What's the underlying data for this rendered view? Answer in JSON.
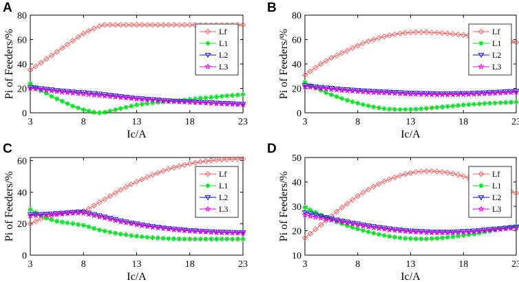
{
  "chart_data": [
    {
      "type": "line",
      "panel_label": "A",
      "xlabel": "Ic/A",
      "ylabel": "Pi of Feeders/%",
      "xlim": [
        3,
        23
      ],
      "ylim": [
        0,
        80
      ],
      "xticks": [
        3,
        8,
        13,
        18,
        23
      ],
      "yticks": [
        0,
        20,
        40,
        60,
        80
      ],
      "grid": false,
      "legend_position": "top-right",
      "x": [
        3,
        3.5,
        4,
        4.5,
        5,
        5.5,
        6,
        6.5,
        7,
        7.5,
        8,
        8.5,
        9,
        9.5,
        10,
        10.5,
        11,
        11.5,
        12,
        12.5,
        13,
        13.5,
        14,
        14.5,
        15,
        15.5,
        16,
        16.5,
        17,
        17.5,
        18,
        18.5,
        19,
        19.5,
        20,
        20.5,
        21,
        21.5,
        22,
        22.5,
        23
      ],
      "series": [
        {
          "name": "Lf",
          "color": "#ff5a5a",
          "marker": "diamond",
          "values": [
            35,
            38,
            41,
            44,
            47,
            50,
            53,
            56,
            59,
            62,
            65,
            67,
            69,
            71,
            72,
            72,
            72,
            72,
            72,
            72,
            72,
            72,
            72,
            72,
            72,
            72,
            72,
            72,
            72,
            72,
            72,
            72,
            72,
            72,
            72,
            72,
            72,
            72,
            72,
            72,
            72
          ]
        },
        {
          "name": "L1",
          "color": "#00e020",
          "marker": "star",
          "values": [
            24,
            21,
            18,
            16,
            13.5,
            11.5,
            9.5,
            7.5,
            5.5,
            4,
            2.5,
            1.5,
            0.5,
            0,
            0.5,
            1.5,
            2.5,
            3.5,
            4.5,
            5.5,
            6.5,
            7,
            7.5,
            8,
            8.5,
            9,
            9.3,
            9.6,
            10,
            10.5,
            11,
            11.5,
            12,
            12.3,
            12.6,
            13,
            13.5,
            14,
            14.3,
            14.6,
            15
          ]
        },
        {
          "name": "L2",
          "color": "#0000ff",
          "marker": "triangle-down",
          "values": [
            21,
            20.5,
            20,
            19.5,
            19,
            18.5,
            18,
            17.7,
            17.3,
            17,
            16.7,
            16.3,
            16,
            15.5,
            15,
            14.5,
            14,
            13.5,
            13,
            12.5,
            12,
            11.7,
            11.3,
            11,
            10.7,
            10.3,
            10,
            9.8,
            9.6,
            9.4,
            9.2,
            9,
            8.8,
            8.6,
            8.4,
            8.2,
            8,
            7.8,
            7.6,
            7.4,
            7.2
          ]
        },
        {
          "name": "L3",
          "color": "#e000e0",
          "marker": "star-open",
          "values": [
            20,
            19.5,
            19,
            18.5,
            18,
            17.5,
            17,
            16.6,
            16.2,
            15.8,
            15.4,
            15,
            14.6,
            14.2,
            13.8,
            13.4,
            13,
            12.6,
            12.2,
            11.8,
            11.4,
            11,
            10.7,
            10.4,
            10.1,
            9.8,
            9.5,
            9.2,
            9,
            8.8,
            8.6,
            8.4,
            8.2,
            8,
            7.8,
            7.6,
            7.4,
            7.2,
            7,
            6.8,
            6.6
          ]
        }
      ]
    },
    {
      "type": "line",
      "panel_label": "B",
      "xlabel": "Ic/A",
      "ylabel": "Pi of Feeders/%",
      "xlim": [
        3,
        23
      ],
      "ylim": [
        0,
        80
      ],
      "xticks": [
        3,
        8,
        13,
        18,
        23
      ],
      "yticks": [
        0,
        20,
        40,
        60,
        80
      ],
      "grid": false,
      "legend_position": "top-right",
      "x": [
        3,
        3.5,
        4,
        4.5,
        5,
        5.5,
        6,
        6.5,
        7,
        7.5,
        8,
        8.5,
        9,
        9.5,
        10,
        10.5,
        11,
        11.5,
        12,
        12.5,
        13,
        13.5,
        14,
        14.5,
        15,
        15.5,
        16,
        16.5,
        17,
        17.5,
        18,
        18.5,
        19,
        19.5,
        20,
        20.5,
        21,
        21.5,
        22,
        22.5,
        23
      ],
      "series": [
        {
          "name": "Lf",
          "color": "#ff5a5a",
          "marker": "diamond",
          "values": [
            31,
            34,
            37,
            40,
            42.5,
            45,
            47,
            49,
            51,
            53,
            55,
            57,
            58.5,
            60,
            61.5,
            62.5,
            63.5,
            64.3,
            65,
            65.5,
            65.8,
            66,
            66,
            66,
            65.8,
            65.6,
            65.3,
            65,
            64.6,
            64.2,
            63.8,
            63.3,
            62.8,
            62.3,
            61.7,
            61.1,
            60.5,
            59.8,
            59.1,
            58.4,
            57.7
          ]
        },
        {
          "name": "L1",
          "color": "#00e020",
          "marker": "star",
          "values": [
            25,
            22.5,
            20.5,
            18.5,
            16.5,
            14.8,
            13.2,
            11.7,
            10.3,
            9,
            7.8,
            6.7,
            5.7,
            4.8,
            4,
            3.4,
            3,
            2.8,
            2.7,
            2.7,
            2.8,
            3,
            3.3,
            3.6,
            4,
            4.4,
            4.8,
            5.2,
            5.6,
            6,
            6.4,
            6.7,
            7,
            7.3,
            7.6,
            7.8,
            8,
            8.2,
            8.4,
            8.6,
            8.8
          ]
        },
        {
          "name": "L2",
          "color": "#0000ff",
          "marker": "triangle-down",
          "values": [
            22.5,
            22,
            21.5,
            21,
            20.6,
            20.2,
            19.8,
            19.4,
            19.1,
            18.8,
            18.5,
            18.2,
            17.9,
            17.7,
            17.5,
            17.3,
            17.1,
            16.9,
            16.7,
            16.5,
            16.3,
            16.2,
            16.1,
            16,
            15.9,
            15.8,
            15.8,
            15.8,
            15.8,
            15.9,
            16,
            16.1,
            16.2,
            16.4,
            16.6,
            16.8,
            17,
            17.2,
            17.4,
            17.6,
            17.8
          ]
        },
        {
          "name": "L3",
          "color": "#e000e0",
          "marker": "star-open",
          "values": [
            21.5,
            21,
            20.5,
            20,
            19.6,
            19.2,
            18.8,
            18.4,
            18.1,
            17.8,
            17.5,
            17.2,
            16.9,
            16.7,
            16.5,
            16.3,
            16.1,
            15.9,
            15.7,
            15.5,
            15.3,
            15.2,
            15.1,
            15,
            14.9,
            14.8,
            14.8,
            14.8,
            14.8,
            14.9,
            15,
            15.1,
            15.2,
            15.4,
            15.6,
            15.8,
            16,
            16.2,
            16.4,
            16.6,
            16.8
          ]
        }
      ]
    },
    {
      "type": "line",
      "panel_label": "C",
      "xlabel": "Ic/A",
      "ylabel": "Pi of Feeders/%",
      "xlim": [
        3,
        23
      ],
      "ylim": [
        0,
        62
      ],
      "xticks": [
        3,
        8,
        13,
        18,
        23
      ],
      "yticks": [
        0,
        20,
        40,
        60
      ],
      "grid": false,
      "legend_position": "top-right",
      "x": [
        3,
        3.5,
        4,
        4.5,
        5,
        5.5,
        6,
        6.5,
        7,
        7.5,
        8,
        8.5,
        9,
        9.5,
        10,
        10.5,
        11,
        11.5,
        12,
        12.5,
        13,
        13.5,
        14,
        14.5,
        15,
        15.5,
        16,
        16.5,
        17,
        17.5,
        18,
        18.5,
        19,
        19.5,
        20,
        20.5,
        21,
        21.5,
        22,
        22.5,
        23
      ],
      "series": [
        {
          "name": "Lf",
          "color": "#ff5a5a",
          "marker": "diamond",
          "values": [
            20,
            21.5,
            23,
            24,
            25,
            25.8,
            26.5,
            27,
            27.3,
            27.6,
            28,
            29.5,
            31.5,
            33.5,
            35.5,
            37.5,
            39.5,
            41.5,
            43.3,
            45,
            46.6,
            48.1,
            49.6,
            51,
            52.3,
            53.5,
            54.6,
            55.6,
            56.5,
            57.3,
            58,
            58.6,
            59.2,
            59.7,
            60.1,
            60.4,
            60.6,
            60.8,
            60.9,
            61,
            61
          ]
        },
        {
          "name": "L1",
          "color": "#00e020",
          "marker": "star",
          "values": [
            29,
            27,
            25,
            23.5,
            22.5,
            21.5,
            21,
            20.5,
            20,
            19.5,
            19,
            18,
            17,
            16,
            15.3,
            14.6,
            14,
            13.4,
            12.9,
            12.4,
            12,
            11.7,
            11.4,
            11.1,
            10.9,
            10.7,
            10.5,
            10.4,
            10.3,
            10.2,
            10.2,
            10.2,
            10.2,
            10.2,
            10.2,
            10.2,
            10.2,
            10.2,
            10.2,
            10.2,
            10.2
          ]
        },
        {
          "name": "L2",
          "color": "#0000ff",
          "marker": "triangle-down",
          "values": [
            26,
            26,
            26,
            26.2,
            26.4,
            26.6,
            26.8,
            27,
            27.3,
            27.6,
            27.5,
            26.8,
            26,
            25.2,
            24.4,
            23.6,
            22.8,
            22,
            21.3,
            20.6,
            20,
            19.4,
            18.9,
            18.4,
            17.9,
            17.5,
            17.1,
            16.7,
            16.4,
            16.1,
            15.8,
            15.6,
            15.4,
            15.2,
            15,
            14.9,
            14.8,
            14.7,
            14.6,
            14.5,
            14.5
          ]
        },
        {
          "name": "L3",
          "color": "#e000e0",
          "marker": "star-open",
          "values": [
            25,
            25.2,
            25.4,
            25.6,
            25.8,
            26,
            26.2,
            26.4,
            26.6,
            26.8,
            26.7,
            26,
            25.2,
            24.4,
            23.6,
            22.8,
            22,
            21.3,
            20.6,
            20,
            19.4,
            18.8,
            18.3,
            17.8,
            17.4,
            17,
            16.6,
            16.2,
            15.9,
            15.6,
            15.3,
            15.1,
            14.9,
            14.7,
            14.5,
            14.4,
            14.3,
            14.2,
            14.1,
            14,
            14
          ]
        }
      ]
    },
    {
      "type": "line",
      "panel_label": "D",
      "xlabel": "Ic/A",
      "ylabel": "Pi of Feeders/%",
      "xlim": [
        3,
        23
      ],
      "ylim": [
        10,
        50
      ],
      "xticks": [
        3,
        8,
        13,
        18,
        23
      ],
      "yticks": [
        10,
        20,
        30,
        40,
        50
      ],
      "grid": false,
      "legend_position": "top-right",
      "x": [
        3,
        3.5,
        4,
        4.5,
        5,
        5.5,
        6,
        6.5,
        7,
        7.5,
        8,
        8.5,
        9,
        9.5,
        10,
        10.5,
        11,
        11.5,
        12,
        12.5,
        13,
        13.5,
        14,
        14.5,
        15,
        15.5,
        16,
        16.5,
        17,
        17.5,
        18,
        18.5,
        19,
        19.5,
        20,
        20.5,
        21,
        21.5,
        22,
        22.5,
        23
      ],
      "series": [
        {
          "name": "Lf",
          "color": "#ff5a5a",
          "marker": "diamond",
          "values": [
            17,
            18.8,
            20.6,
            22.4,
            24.2,
            26,
            27.8,
            29.5,
            31.1,
            32.7,
            34.2,
            35.6,
            36.9,
            38.1,
            39.2,
            40.2,
            41.1,
            41.9,
            42.6,
            43.2,
            43.7,
            44.1,
            44.3,
            44.4,
            44.4,
            44.3,
            44.1,
            43.8,
            43.4,
            42.9,
            42.3,
            41.7,
            41,
            40.3,
            39.6,
            38.9,
            38.2,
            37.5,
            36.8,
            36.1,
            35.4
          ]
        },
        {
          "name": "L1",
          "color": "#00e020",
          "marker": "star",
          "values": [
            29.5,
            28.5,
            27.5,
            26.5,
            25.5,
            24.6,
            23.7,
            22.9,
            22.1,
            21.4,
            20.7,
            20.1,
            19.5,
            19,
            18.5,
            18.1,
            17.7,
            17.4,
            17.1,
            16.9,
            16.8,
            16.7,
            16.7,
            16.7,
            16.8,
            16.9,
            17.1,
            17.3,
            17.5,
            17.8,
            18.1,
            18.4,
            18.7,
            19.1,
            19.5,
            19.9,
            20.3,
            20.7,
            21.1,
            21.5,
            21.9
          ]
        },
        {
          "name": "L2",
          "color": "#0000ff",
          "marker": "triangle-down",
          "values": [
            27.5,
            27,
            26.5,
            26,
            25.5,
            25,
            24.5,
            24.1,
            23.7,
            23.3,
            22.9,
            22.5,
            22.1,
            21.8,
            21.5,
            21.2,
            20.9,
            20.6,
            20.4,
            20.2,
            20,
            19.9,
            19.8,
            19.7,
            19.6,
            19.6,
            19.6,
            19.6,
            19.6,
            19.7,
            19.8,
            19.9,
            20,
            20.2,
            20.4,
            20.6,
            20.8,
            21,
            21.2,
            21.4,
            21.6
          ]
        },
        {
          "name": "L3",
          "color": "#e000e0",
          "marker": "star-open",
          "values": [
            26.5,
            26,
            25.6,
            25.2,
            24.8,
            24.4,
            24,
            23.6,
            23.2,
            22.8,
            22.4,
            22,
            21.6,
            21.3,
            21,
            20.7,
            20.4,
            20.2,
            20,
            19.8,
            19.6,
            19.5,
            19.4,
            19.3,
            19.2,
            19.2,
            19.2,
            19.2,
            19.2,
            19.3,
            19.4,
            19.5,
            19.6,
            19.8,
            20,
            20.2,
            20.4,
            20.6,
            20.8,
            21,
            21.2
          ]
        }
      ]
    }
  ]
}
